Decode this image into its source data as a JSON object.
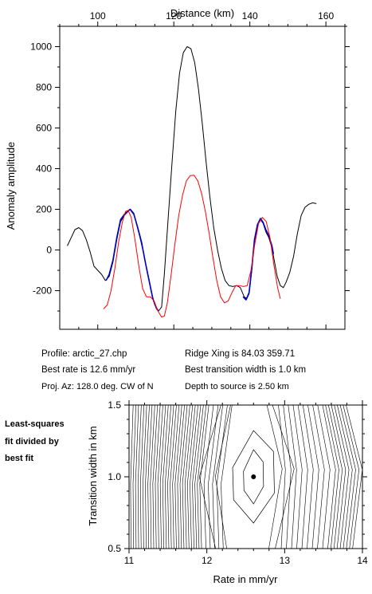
{
  "chart_data": [
    {
      "type": "line",
      "title": "",
      "xlabel": "Distance (km)",
      "ylabel": "Anomaly amplitude",
      "xlim": [
        90,
        165
      ],
      "ylim": [
        -390,
        1100
      ],
      "x_ticks": [
        100,
        120,
        140,
        160
      ],
      "y_ticks": [
        -200,
        0,
        200,
        400,
        600,
        800,
        1000
      ],
      "grid": false,
      "series": [
        {
          "name": "",
          "color": "#000000",
          "points": [
            [
              92,
              20
            ],
            [
              93,
              60
            ],
            [
              94,
              100
            ],
            [
              95,
              110
            ],
            [
              96,
              95
            ],
            [
              97,
              50
            ],
            [
              98,
              -10
            ],
            [
              99,
              -80
            ],
            [
              100,
              -100
            ],
            [
              101,
              -120
            ],
            [
              102,
              -150
            ],
            [
              103,
              -130
            ],
            [
              104,
              -60
            ],
            [
              105,
              50
            ],
            [
              106,
              140
            ],
            [
              107,
              170
            ],
            [
              108,
              190
            ],
            [
              108.6,
              200
            ],
            [
              109.5,
              180
            ],
            [
              110,
              140
            ],
            [
              111,
              70
            ],
            [
              112,
              -10
            ],
            [
              113,
              -110
            ],
            [
              114,
              -200
            ],
            [
              115,
              -270
            ],
            [
              116,
              -300
            ],
            [
              116.8,
              -280
            ],
            [
              117.5,
              -120
            ],
            [
              118.5,
              150
            ],
            [
              119.5,
              420
            ],
            [
              120.5,
              680
            ],
            [
              121.5,
              870
            ],
            [
              122.5,
              970
            ],
            [
              123.5,
              1000
            ],
            [
              124.5,
              990
            ],
            [
              125.5,
              920
            ],
            [
              126.5,
              790
            ],
            [
              127.5,
              620
            ],
            [
              128.5,
              430
            ],
            [
              129.5,
              260
            ],
            [
              130.5,
              110
            ],
            [
              131.5,
              0
            ],
            [
              132.5,
              -90
            ],
            [
              133.5,
              -150
            ],
            [
              134.5,
              -175
            ],
            [
              135.5,
              -180
            ],
            [
              136.5,
              -175
            ],
            [
              137.5,
              -185
            ],
            [
              138.5,
              -230
            ],
            [
              139.2,
              -240
            ],
            [
              139.8,
              -215
            ],
            [
              140.5,
              -100
            ],
            [
              141.2,
              40
            ],
            [
              142,
              120
            ],
            [
              142.8,
              150
            ],
            [
              143.5,
              130
            ],
            [
              144.2,
              90
            ],
            [
              145,
              60
            ],
            [
              145.8,
              10
            ],
            [
              146.5,
              -60
            ],
            [
              147.2,
              -130
            ],
            [
              148,
              -175
            ],
            [
              148.8,
              -185
            ],
            [
              149.5,
              -160
            ],
            [
              150.5,
              -110
            ],
            [
              151.5,
              -30
            ],
            [
              152.5,
              80
            ],
            [
              153.5,
              170
            ],
            [
              154.5,
              210
            ],
            [
              155.5,
              225
            ],
            [
              156.5,
              232
            ],
            [
              157.5,
              228
            ]
          ]
        },
        {
          "name": "",
          "color": "#0000cc",
          "points": [
            [
              102.2,
              -150
            ],
            [
              103,
              -120
            ],
            [
              104,
              -50
            ],
            [
              105,
              60
            ],
            [
              106,
              150
            ],
            [
              107,
              175
            ],
            [
              108.5,
              200
            ],
            [
              109.5,
              175
            ],
            [
              110.5,
              110
            ],
            [
              111.5,
              40
            ],
            [
              112.5,
              -60
            ],
            [
              113.5,
              -150
            ],
            [
              114.5,
              -240
            ],
            [
              115.5,
              -290
            ],
            [
              116,
              -300
            ]
          ]
        },
        {
          "name": "",
          "color": "#0000cc",
          "points": [
            [
              138.2,
              -230
            ],
            [
              139,
              -245
            ],
            [
              139.8,
              -210
            ],
            [
              140.5,
              -90
            ],
            [
              141.2,
              50
            ],
            [
              142,
              125
            ],
            [
              142.8,
              155
            ],
            [
              143.5,
              135
            ],
            [
              144.2,
              100
            ],
            [
              145,
              70
            ],
            [
              145.8,
              20
            ],
            [
              146.2,
              -20
            ]
          ]
        },
        {
          "name": "",
          "color": "#ff0000",
          "points": [
            [
              101.5,
              -290
            ],
            [
              102.5,
              -270
            ],
            [
              103.5,
              -200
            ],
            [
              104.5,
              -90
            ],
            [
              105.5,
              40
            ],
            [
              106.5,
              140
            ],
            [
              107.3,
              190
            ],
            [
              108,
              195
            ],
            [
              108.8,
              160
            ],
            [
              109.8,
              50
            ],
            [
              110.8,
              -80
            ],
            [
              111.8,
              -190
            ],
            [
              112.8,
              -230
            ],
            [
              113.8,
              -230
            ],
            [
              114.8,
              -250
            ],
            [
              115.8,
              -300
            ],
            [
              116.8,
              -330
            ],
            [
              117.5,
              -325
            ],
            [
              118.3,
              -260
            ],
            [
              119.3,
              -120
            ],
            [
              120.3,
              30
            ],
            [
              121.3,
              170
            ],
            [
              122.3,
              270
            ],
            [
              123.3,
              340
            ],
            [
              124.3,
              365
            ],
            [
              125.3,
              368
            ],
            [
              126.3,
              340
            ],
            [
              127.3,
              280
            ],
            [
              128.3,
              190
            ],
            [
              129.3,
              80
            ],
            [
              130.3,
              -40
            ],
            [
              131.3,
              -150
            ],
            [
              132.3,
              -230
            ],
            [
              133.3,
              -260
            ],
            [
              134.3,
              -250
            ],
            [
              135.3,
              -210
            ],
            [
              136.3,
              -175
            ],
            [
              137.3,
              -175
            ],
            [
              138.3,
              -180
            ],
            [
              139.3,
              -175
            ],
            [
              140.3,
              -100
            ],
            [
              141.3,
              30
            ],
            [
              142.3,
              130
            ],
            [
              143.3,
              160
            ],
            [
              144.3,
              140
            ],
            [
              145.3,
              60
            ],
            [
              146.3,
              -70
            ],
            [
              147.3,
              -185
            ],
            [
              148,
              -240
            ]
          ]
        }
      ]
    },
    {
      "type": "contour",
      "title": "",
      "xlabel": "Rate in mm/yr",
      "ylabel": "Transition width in km",
      "xlim": [
        11,
        14
      ],
      "ylim": [
        0.5,
        1.5
      ],
      "x_ticks": [
        11,
        12,
        13,
        14
      ],
      "y_ticks": [
        0.5,
        1.0,
        1.5
      ],
      "grid": false,
      "best_fit_point": [
        12.6,
        1.0
      ]
    }
  ],
  "info": {
    "profile": "Profile: arctic_27.chp",
    "ridge": "Ridge Xing is 84.03 359.71",
    "best_rate": "Best rate is 12.6 mm/yr",
    "best_width": "Best transition width is 1.0 km",
    "proj_az": "Proj. Az: 128.0 deg. CW of N",
    "depth": "Depth to source is   2.50 km"
  },
  "side_note": [
    "Least-squares",
    "fit divided by",
    "best fit"
  ]
}
